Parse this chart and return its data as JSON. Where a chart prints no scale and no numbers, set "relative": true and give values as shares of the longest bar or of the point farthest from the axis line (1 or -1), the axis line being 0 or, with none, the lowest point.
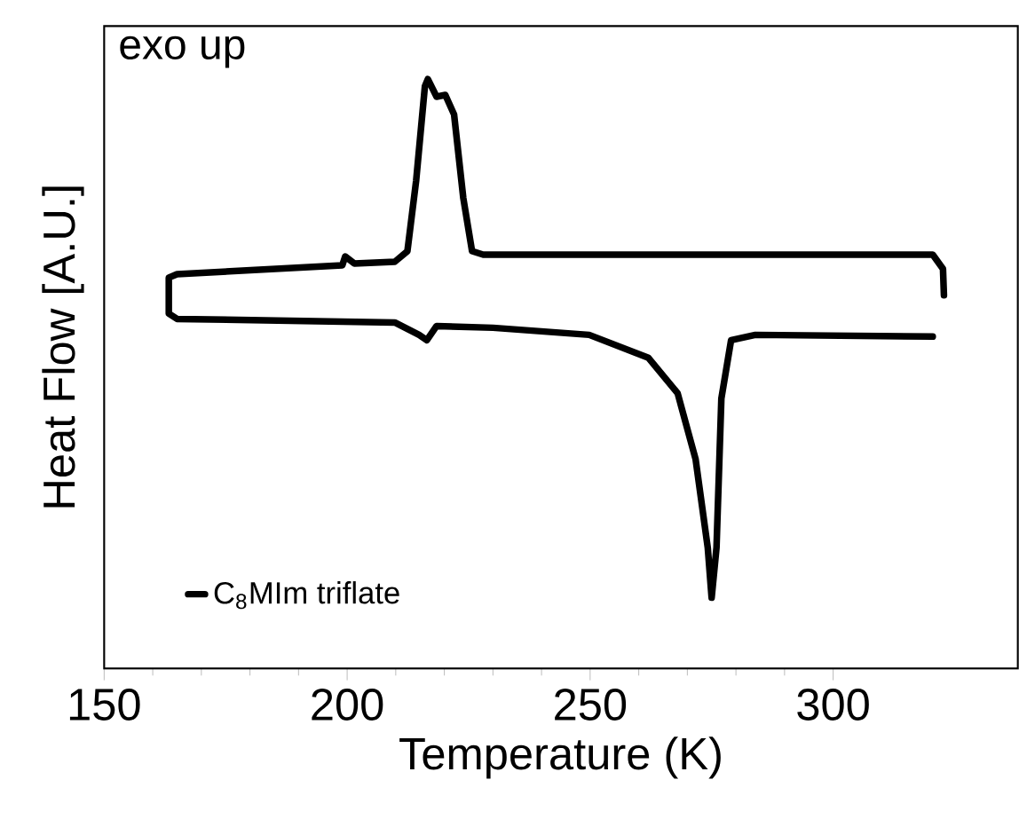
{
  "chart_data": {
    "type": "line",
    "xlabel": "Temperature (K)",
    "ylabel": "Heat Flow [A.U.]",
    "annotations": [
      "exo up"
    ],
    "relative": true,
    "xlim": [
      150,
      338
    ],
    "xticks": [
      150,
      200,
      250,
      300
    ],
    "legend": "bottom left",
    "marker": "none",
    "line_style": "solid",
    "grid": false,
    "series": [
      {
        "name": "C$_{8}$MIm triflate",
        "color": "#000000",
        "x": [
          320.5,
          284,
          279,
          277,
          276,
          275,
          274.2,
          271.7,
          268,
          262,
          249.8,
          230,
          218.4,
          216.4,
          214.8,
          209.8,
          165,
          163.3,
          163.3,
          165,
          199,
          199.6,
          201.5,
          209.8,
          212.4,
          214.2,
          216,
          216.6,
          218.4,
          220.2,
          222,
          223.9,
          225.7,
          228,
          320.5,
          322.6,
          322.8
        ],
        "values": [
          0.563,
          0.566,
          0.557,
          0.458,
          0.205,
          0.12,
          0.205,
          0.355,
          0.467,
          0.527,
          0.566,
          0.578,
          0.581,
          0.557,
          0.566,
          0.587,
          0.593,
          0.602,
          0.663,
          0.669,
          0.684,
          0.699,
          0.687,
          0.69,
          0.708,
          0.828,
          0.988,
          1.0,
          0.97,
          0.973,
          0.94,
          0.798,
          0.708,
          0.702,
          0.702,
          0.678,
          0.633
        ]
      }
    ]
  }
}
